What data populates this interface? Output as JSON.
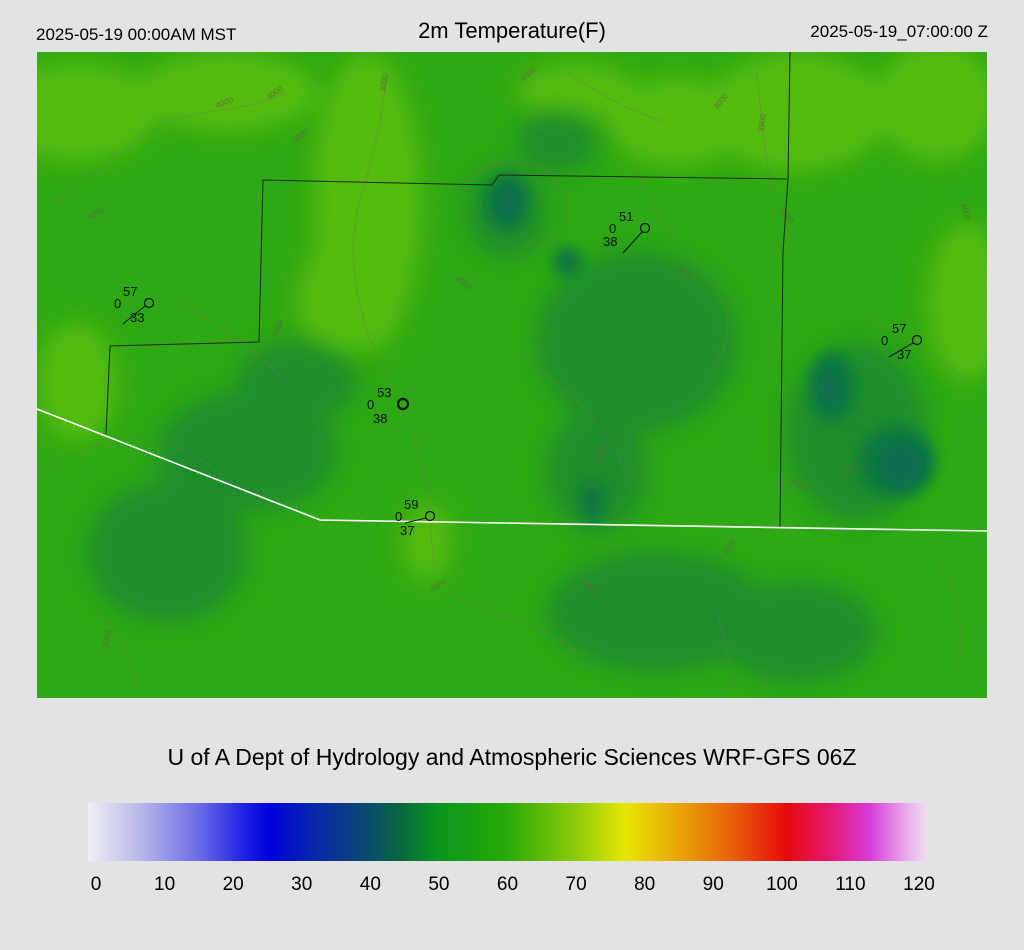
{
  "header": {
    "local_time": "2025-05-19 00:00AM MST",
    "title": "2m Temperature(F)",
    "utc_time": "2025-05-19_07:00:00 Z"
  },
  "credit": "U of A Dept of Hydrology and Atmospheric Sciences WRF-GFS 06Z",
  "colorbar": {
    "ticks": [
      "0",
      "10",
      "20",
      "30",
      "40",
      "50",
      "60",
      "70",
      "80",
      "90",
      "100",
      "110",
      "120"
    ],
    "stops": [
      {
        "v": 0,
        "c": "#f0eff6"
      },
      {
        "v": 8,
        "c": "#b3b3e8"
      },
      {
        "v": 16,
        "c": "#6a6ae8"
      },
      {
        "v": 22,
        "c": "#2424e6"
      },
      {
        "v": 26,
        "c": "#0000dc"
      },
      {
        "v": 33,
        "c": "#0a2aa6"
      },
      {
        "v": 40,
        "c": "#0a4a6e"
      },
      {
        "v": 45,
        "c": "#096a3c"
      },
      {
        "v": 50,
        "c": "#0a941e"
      },
      {
        "v": 60,
        "c": "#28aa08"
      },
      {
        "v": 70,
        "c": "#8fcc08"
      },
      {
        "v": 77,
        "c": "#e8e606"
      },
      {
        "v": 85,
        "c": "#e8a206"
      },
      {
        "v": 92,
        "c": "#e8620a"
      },
      {
        "v": 100,
        "c": "#e60a0a"
      },
      {
        "v": 106,
        "c": "#e6186e"
      },
      {
        "v": 112,
        "c": "#d63cd8"
      },
      {
        "v": 117,
        "c": "#e8a8e8"
      },
      {
        "v": 120,
        "c": "#efdbee"
      }
    ]
  },
  "stations": [
    {
      "temp": "57",
      "wind": "0",
      "dew": "33"
    },
    {
      "temp": "53",
      "wind": "0",
      "dew": "38"
    },
    {
      "temp": "51",
      "wind": "0",
      "dew": "38"
    },
    {
      "temp": "57",
      "wind": "0",
      "dew": "37"
    },
    {
      "temp": "59",
      "wind": "0",
      "dew": "37"
    }
  ],
  "contour_labels": [
    "4000",
    "4000",
    "3000",
    "4000",
    "3000",
    "3500",
    "4000",
    "3000",
    "3500",
    "4000",
    "3500",
    "4000",
    "4000",
    "3500",
    "4000",
    "3500",
    "3500",
    "4000",
    "3000",
    "4500"
  ],
  "colors": {
    "background": "#e3e3e3",
    "map_base": "#2ea814",
    "map_light": "#5cbf10",
    "map_dark": "#117a3a",
    "county_line": "#1c2a1c",
    "state_line": "#ffffff"
  },
  "icons": {
    "station": "station-circle-icon"
  }
}
